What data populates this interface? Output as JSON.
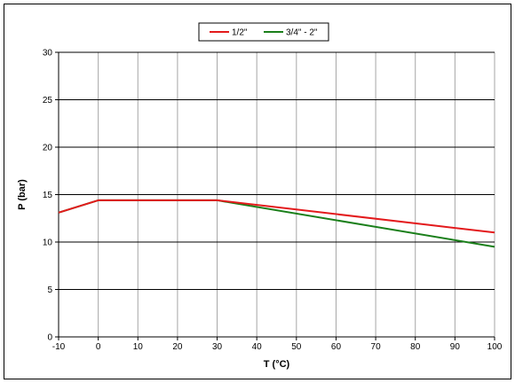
{
  "chart_data": {
    "type": "line",
    "title": "",
    "xlabel": "T (°C)",
    "ylabel": "P (bar)",
    "xlim": [
      -10,
      100
    ],
    "ylim": [
      0,
      30
    ],
    "xticks": [
      -10,
      0,
      10,
      20,
      30,
      40,
      50,
      60,
      70,
      80,
      90,
      100
    ],
    "yticks": [
      0,
      5,
      10,
      15,
      20,
      25,
      30
    ],
    "grid": true,
    "legend": "top-center",
    "series": [
      {
        "name": "1/2\"",
        "color": "#e31a1c",
        "points": [
          [
            -10,
            13.1
          ],
          [
            0,
            14.4
          ],
          [
            30,
            14.4
          ],
          [
            100,
            11.0
          ]
        ]
      },
      {
        "name": "3/4\" - 2\"",
        "color": "#1a7f1a",
        "points": [
          [
            -10,
            13.1
          ],
          [
            0,
            14.4
          ],
          [
            30,
            14.4
          ],
          [
            100,
            9.5
          ]
        ]
      }
    ]
  }
}
